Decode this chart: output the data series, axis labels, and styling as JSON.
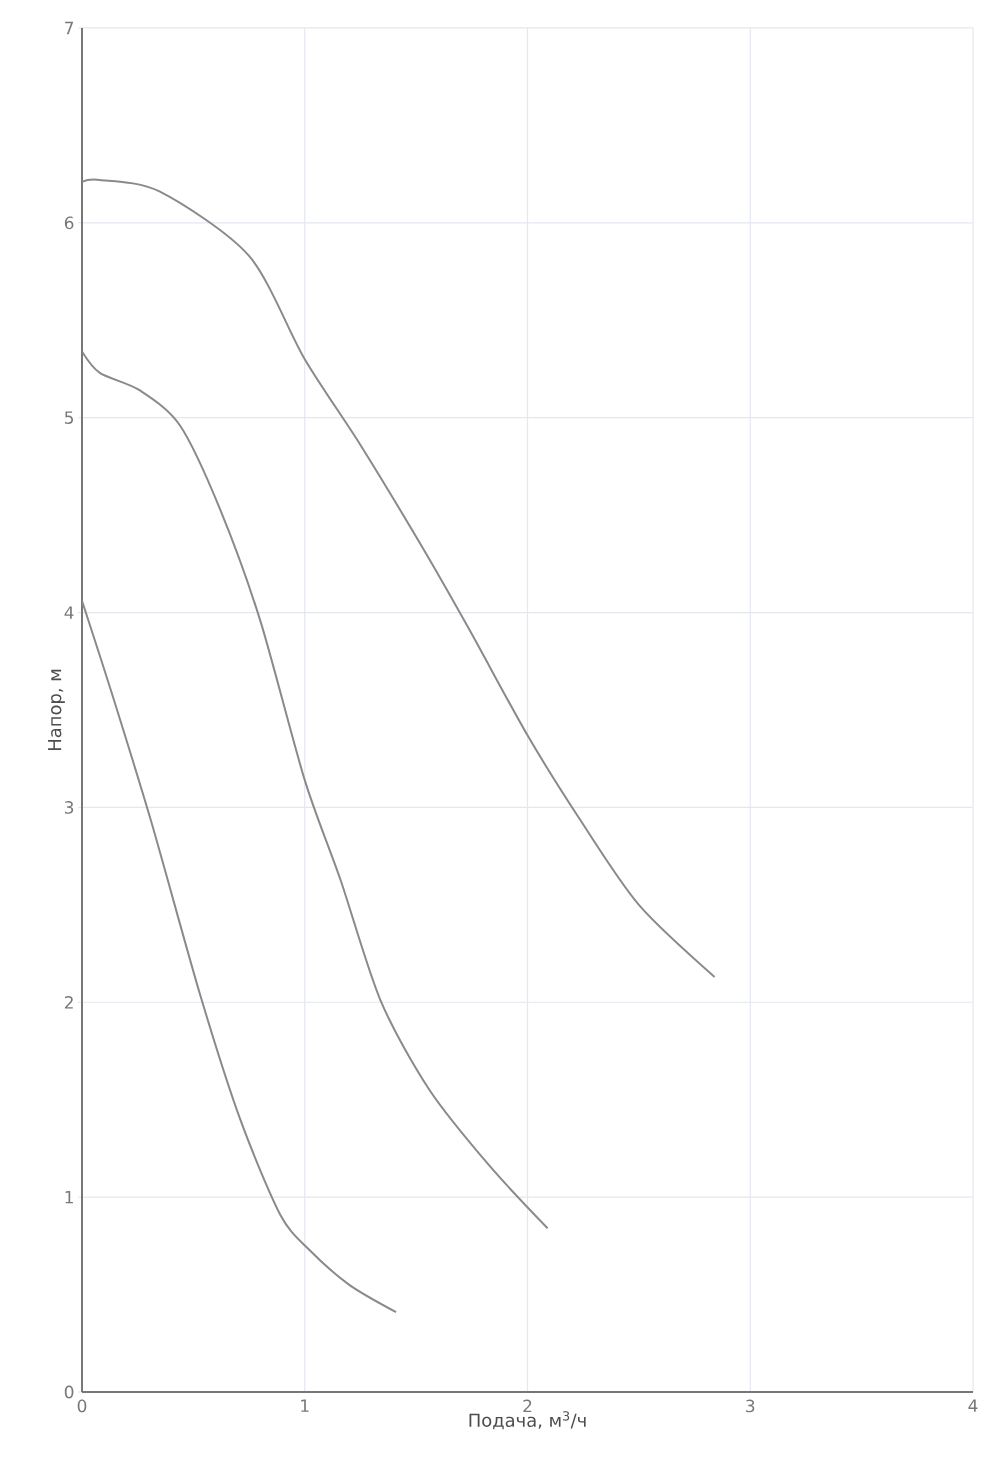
{
  "chart_data": {
    "type": "line",
    "xlabel": "Подача, м$^{3}$/ч",
    "ylabel": "Напор, м",
    "xlim": [
      0,
      4
    ],
    "ylim": [
      0,
      7
    ],
    "xticks": [
      0,
      1,
      2,
      3,
      4
    ],
    "yticks": [
      0,
      1,
      2,
      3,
      4,
      5,
      6,
      7
    ],
    "grid": true,
    "marker": "none",
    "line_style": "solid",
    "series": [
      {
        "color": "#8a8a8a",
        "x": [
          0,
          0.08,
          0.35,
          0.75,
          1,
          1.25,
          1.52,
          1.74,
          2,
          2.24,
          2.5,
          2.84
        ],
        "values": [
          6.21,
          6.22,
          6.16,
          5.83,
          5.3,
          4.86,
          4.35,
          3.91,
          3.37,
          2.93,
          2.5,
          2.13
        ]
      },
      {
        "color": "#8a8a8a",
        "x": [
          0,
          0.08,
          0.26,
          0.44,
          0.62,
          0.8,
          1,
          1.16,
          1.34,
          1.56,
          1.83,
          2.09
        ],
        "values": [
          5.34,
          5.23,
          5.14,
          4.96,
          4.53,
          3.96,
          3.14,
          2.63,
          2.01,
          1.55,
          1.16,
          0.84
        ]
      },
      {
        "color": "#8a8a8a",
        "x": [
          0,
          0.13,
          0.31,
          0.53,
          0.71,
          0.89,
          1.02,
          1.2,
          1.41
        ],
        "values": [
          4.06,
          3.6,
          2.93,
          2.04,
          1.4,
          0.91,
          0.73,
          0.55,
          0.41
        ]
      }
    ]
  }
}
